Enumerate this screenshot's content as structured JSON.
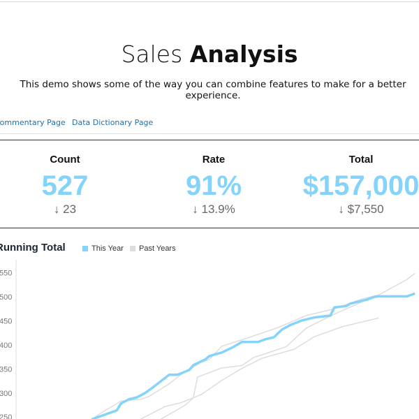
{
  "header": {
    "title_light": "Sales ",
    "title_bold": "Analysis",
    "subtitle": "This demo shows some of the way you can combine features to make for a better experience."
  },
  "nav": {
    "items": [
      {
        "label": "Commentary Page"
      },
      {
        "label": "Data Dictionary Page"
      }
    ]
  },
  "kpis": [
    {
      "label": "Count",
      "value": "527",
      "change": "↓ 23"
    },
    {
      "label": "Rate",
      "value": "91%",
      "change": "↓ 13.9%"
    },
    {
      "label": "Total",
      "value": "$157,000",
      "change": "↓ $7,550"
    }
  ],
  "colors": {
    "accent": "#84d3fb",
    "past": "#dddddd",
    "link": "#1f6fad"
  },
  "chart_data": {
    "type": "line",
    "title": "Running Total",
    "legend": "top",
    "grid": false,
    "ylim": [
      246,
      577
    ],
    "yticks": [
      250,
      300,
      350,
      400,
      450,
      500,
      550
    ],
    "ytick_labels": [
      "250",
      "300",
      "350",
      "400",
      "450",
      "500",
      "550"
    ],
    "series": [
      {
        "name": "This Year",
        "color": "#84d3fb",
        "points": [
          [
            17,
            225
          ],
          [
            19,
            246
          ],
          [
            25,
            264
          ],
          [
            26,
            278
          ],
          [
            28,
            287
          ],
          [
            30,
            291
          ],
          [
            32,
            300
          ],
          [
            34,
            312
          ],
          [
            36,
            325
          ],
          [
            38,
            338
          ],
          [
            40,
            338
          ],
          [
            41,
            341
          ],
          [
            43,
            348
          ],
          [
            44,
            358
          ],
          [
            45,
            362
          ],
          [
            47,
            370
          ],
          [
            48,
            377
          ],
          [
            51,
            384
          ],
          [
            52,
            388
          ],
          [
            54,
            396
          ],
          [
            56,
            406
          ],
          [
            60,
            406
          ],
          [
            62,
            412
          ],
          [
            64,
            416
          ],
          [
            66,
            432
          ],
          [
            68,
            441
          ],
          [
            71,
            451
          ],
          [
            74,
            457
          ],
          [
            78,
            461
          ],
          [
            79,
            478
          ],
          [
            82,
            481
          ],
          [
            83,
            486
          ],
          [
            87,
            494
          ],
          [
            89,
            500
          ],
          [
            90,
            501
          ],
          [
            97,
            501
          ],
          [
            99,
            507
          ]
        ]
      },
      {
        "name": "Past Years",
        "color": "#dddddd",
        "points": [
          [
            17,
            230
          ],
          [
            19,
            246
          ],
          [
            21,
            258
          ],
          [
            26,
            283
          ],
          [
            31,
            287
          ],
          [
            33,
            293
          ],
          [
            38,
            319
          ],
          [
            41,
            339
          ],
          [
            46,
            364
          ],
          [
            48,
            370
          ],
          [
            51,
            397
          ],
          [
            58,
            416
          ],
          [
            65,
            436
          ],
          [
            72,
            461
          ],
          [
            79,
            475
          ],
          [
            86,
            496
          ],
          [
            90,
            504
          ],
          [
            97,
            536
          ],
          [
            99,
            549
          ]
        ]
      },
      {
        "name": "Past Years",
        "color": "#dddddd",
        "points": [
          [
            29,
            230
          ],
          [
            31,
            246
          ],
          [
            37,
            272
          ],
          [
            41,
            280
          ],
          [
            46,
            297
          ],
          [
            51,
            326
          ],
          [
            56,
            351
          ],
          [
            61,
            372
          ],
          [
            69,
            391
          ],
          [
            74,
            417
          ],
          [
            81,
            438
          ],
          [
            90,
            456
          ]
        ]
      },
      {
        "name": "Past Years",
        "color": "#dddddd",
        "points": [
          [
            34,
            230
          ],
          [
            36,
            246
          ],
          [
            42,
            275
          ],
          [
            44,
            290
          ],
          [
            45,
            333
          ],
          [
            51,
            352
          ],
          [
            56,
            357
          ],
          [
            59,
            374
          ],
          [
            67,
            396
          ],
          [
            72,
            435
          ],
          [
            79,
            464
          ],
          [
            86,
            490
          ],
          [
            88,
            497
          ]
        ]
      }
    ]
  },
  "legend": {
    "this_year": "This Year",
    "past_years": "Past Years"
  }
}
